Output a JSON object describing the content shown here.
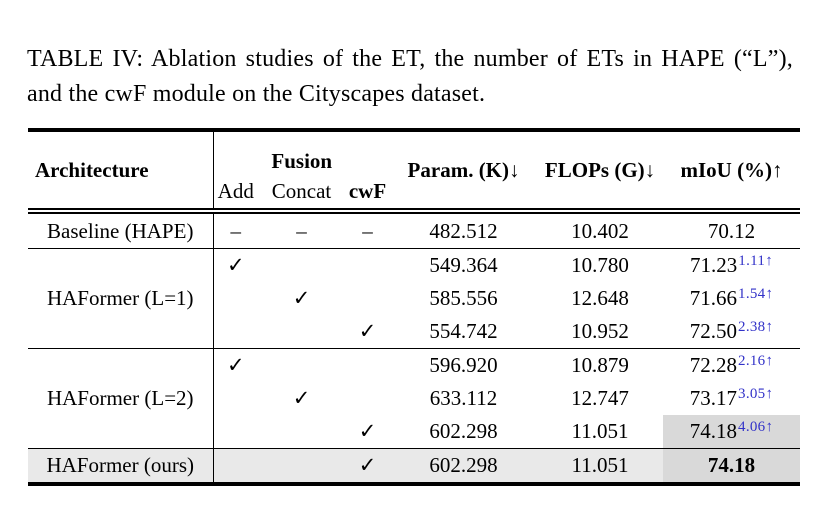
{
  "caption": "TABLE IV: Ablation studies of the ET, the number of ETs in HAPE (“L”), and the cwF module on the Cityscapes dataset.",
  "colors": {
    "gain_blue": "#3232c8",
    "miou_cell_highlight": "#d9d9d9",
    "ours_row_highlight": "#e9e9e9",
    "rule_color": "#000000"
  },
  "glyphs": {
    "checkmark": "✓",
    "dash": "–",
    "down_arrow": "↓",
    "up_arrow": "↑"
  },
  "table": {
    "headers": {
      "architecture": "Architecture",
      "fusion_group": "Fusion",
      "fusion_cols": [
        "Add",
        "Concat",
        "cwF"
      ],
      "param": "Param. (K)↓",
      "flops": "FLOPs (G)↓",
      "miou": "mIoU (%)↑"
    },
    "rows": [
      {
        "arch": "Baseline (HAPE)",
        "add": "–",
        "concat": "–",
        "cwf": "–",
        "param": "482.512",
        "flops": "10.402",
        "miou": "70.12",
        "gain": ""
      },
      {
        "arch": "HAFormer (L=1)",
        "add": "✓",
        "concat": "",
        "cwf": "",
        "param": "549.364",
        "flops": "10.780",
        "miou": "71.23",
        "gain": "1.11↑"
      },
      {
        "arch": "",
        "add": "",
        "concat": "✓",
        "cwf": "",
        "param": "585.556",
        "flops": "12.648",
        "miou": "71.66",
        "gain": "1.54↑"
      },
      {
        "arch": "",
        "add": "",
        "concat": "",
        "cwf": "✓",
        "param": "554.742",
        "flops": "10.952",
        "miou": "72.50",
        "gain": "2.38↑"
      },
      {
        "arch": "HAFormer (L=2)",
        "add": "✓",
        "concat": "",
        "cwf": "",
        "param": "596.920",
        "flops": "10.879",
        "miou": "72.28",
        "gain": "2.16↑"
      },
      {
        "arch": "",
        "add": "",
        "concat": "✓",
        "cwf": "",
        "param": "633.112",
        "flops": "12.747",
        "miou": "73.17",
        "gain": "3.05↑"
      },
      {
        "arch": "",
        "add": "",
        "concat": "",
        "cwf": "✓",
        "param": "602.298",
        "flops": "11.051",
        "miou": "74.18",
        "gain": "4.06↑"
      },
      {
        "arch": "HAFormer (ours)",
        "add": "",
        "concat": "",
        "cwf": "✓",
        "param": "602.298",
        "flops": "11.051",
        "miou": "74.18",
        "gain": ""
      }
    ]
  }
}
